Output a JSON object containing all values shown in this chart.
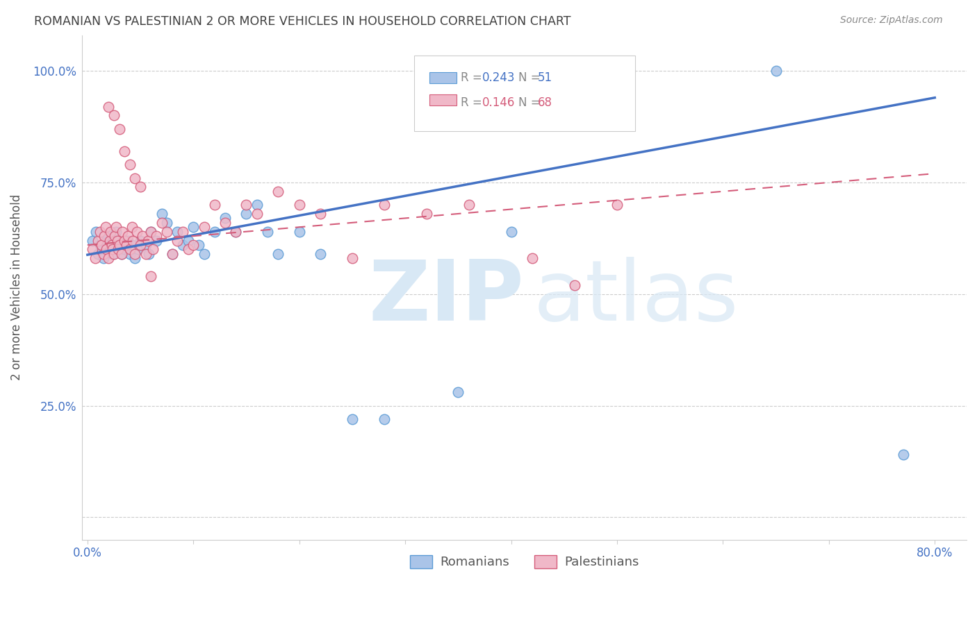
{
  "title": "ROMANIAN VS PALESTINIAN 2 OR MORE VEHICLES IN HOUSEHOLD CORRELATION CHART",
  "source": "Source: ZipAtlas.com",
  "ylabel": "2 or more Vehicles in Household",
  "romanians_color": "#aac4e8",
  "romanians_edge_color": "#5b9bd5",
  "palestinians_color": "#f0b8c8",
  "palestinians_edge_color": "#d45c7a",
  "trend_romanian_color": "#4472c4",
  "trend_palestinian_color": "#d45c7a",
  "background_color": "#ffffff",
  "grid_color": "#cccccc",
  "title_color": "#404040",
  "source_color": "#888888",
  "tick_color": "#4472c4",
  "ylabel_color": "#555555",
  "watermark_color": "#d8e8f5",
  "legend_box_color": "#cccccc",
  "legend_R_color": "#4472c4",
  "legend_N_color": "#4472c4",
  "legend_R2_color": "#d45c7a",
  "legend_N2_color": "#d45c7a",
  "rom_x": [
    0.005,
    0.008,
    0.01,
    0.012,
    0.013,
    0.015,
    0.017,
    0.018,
    0.02,
    0.022,
    0.024,
    0.025,
    0.027,
    0.028,
    0.03,
    0.032,
    0.035,
    0.038,
    0.04,
    0.042,
    0.045,
    0.048,
    0.05,
    0.055,
    0.058,
    0.06,
    0.065,
    0.07,
    0.075,
    0.08,
    0.085,
    0.09,
    0.095,
    0.1,
    0.105,
    0.11,
    0.12,
    0.13,
    0.14,
    0.15,
    0.16,
    0.17,
    0.18,
    0.2,
    0.22,
    0.25,
    0.28,
    0.35,
    0.4,
    0.65,
    0.77
  ],
  "rom_y": [
    0.62,
    0.64,
    0.59,
    0.61,
    0.6,
    0.58,
    0.62,
    0.61,
    0.63,
    0.6,
    0.59,
    0.62,
    0.64,
    0.6,
    0.61,
    0.59,
    0.6,
    0.62,
    0.59,
    0.61,
    0.58,
    0.6,
    0.62,
    0.61,
    0.59,
    0.64,
    0.62,
    0.68,
    0.66,
    0.59,
    0.64,
    0.61,
    0.62,
    0.65,
    0.61,
    0.59,
    0.64,
    0.67,
    0.64,
    0.68,
    0.7,
    0.64,
    0.59,
    0.64,
    0.59,
    0.22,
    0.22,
    0.28,
    0.64,
    1.0,
    0.14
  ],
  "pal_x": [
    0.005,
    0.007,
    0.01,
    0.012,
    0.013,
    0.015,
    0.016,
    0.017,
    0.018,
    0.02,
    0.021,
    0.022,
    0.023,
    0.024,
    0.025,
    0.026,
    0.027,
    0.028,
    0.029,
    0.03,
    0.032,
    0.033,
    0.035,
    0.037,
    0.038,
    0.04,
    0.042,
    0.043,
    0.045,
    0.047,
    0.05,
    0.052,
    0.055,
    0.057,
    0.06,
    0.062,
    0.065,
    0.07,
    0.075,
    0.08,
    0.085,
    0.09,
    0.095,
    0.1,
    0.11,
    0.12,
    0.13,
    0.14,
    0.15,
    0.16,
    0.18,
    0.2,
    0.22,
    0.25,
    0.28,
    0.32,
    0.36,
    0.42,
    0.46,
    0.5,
    0.02,
    0.025,
    0.03,
    0.035,
    0.04,
    0.045,
    0.05,
    0.06
  ],
  "pal_y": [
    0.6,
    0.58,
    0.62,
    0.64,
    0.61,
    0.59,
    0.63,
    0.65,
    0.6,
    0.58,
    0.62,
    0.64,
    0.61,
    0.6,
    0.59,
    0.63,
    0.65,
    0.62,
    0.6,
    0.61,
    0.59,
    0.64,
    0.62,
    0.61,
    0.63,
    0.6,
    0.65,
    0.62,
    0.59,
    0.64,
    0.61,
    0.63,
    0.59,
    0.62,
    0.64,
    0.6,
    0.63,
    0.66,
    0.64,
    0.59,
    0.62,
    0.64,
    0.6,
    0.61,
    0.65,
    0.7,
    0.66,
    0.64,
    0.7,
    0.68,
    0.73,
    0.7,
    0.68,
    0.58,
    0.7,
    0.68,
    0.7,
    0.58,
    0.52,
    0.7,
    0.92,
    0.9,
    0.87,
    0.82,
    0.79,
    0.76,
    0.74,
    0.54
  ],
  "yticks": [
    0.0,
    0.25,
    0.5,
    0.75,
    1.0
  ],
  "ytick_labels": [
    "",
    "25.0%",
    "50.0%",
    "75.0%",
    "100.0%"
  ],
  "xmin": -0.005,
  "xmax": 0.83,
  "ymin": -0.05,
  "ymax": 1.08,
  "trend_rom_x0": 0.0,
  "trend_rom_y0": 0.588,
  "trend_rom_x1": 0.8,
  "trend_rom_y1": 0.94,
  "trend_pal_x0": 0.0,
  "trend_pal_y0": 0.61,
  "trend_pal_x1": 0.8,
  "trend_pal_y1": 0.77
}
